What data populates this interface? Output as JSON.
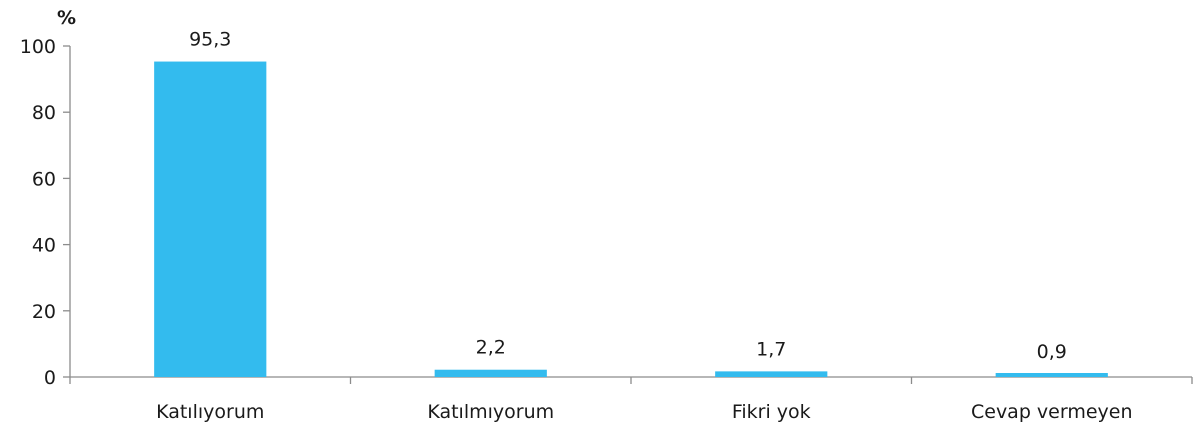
{
  "chart_data": {
    "type": "bar",
    "unit_label": "%",
    "categories": [
      "Katılıyorum",
      "Katılmıyorum",
      "Fikri yok",
      "Cevap vermeyen"
    ],
    "values": [
      95.3,
      2.2,
      1.7,
      0.9
    ],
    "data_labels": [
      "95,3",
      "2,2",
      "1,7",
      "0,9"
    ],
    "ylim": [
      0,
      100
    ],
    "yticks": [
      0,
      20,
      40,
      60,
      80,
      100
    ],
    "grid": false,
    "legend": "none",
    "bar_color": "#33bbee"
  }
}
